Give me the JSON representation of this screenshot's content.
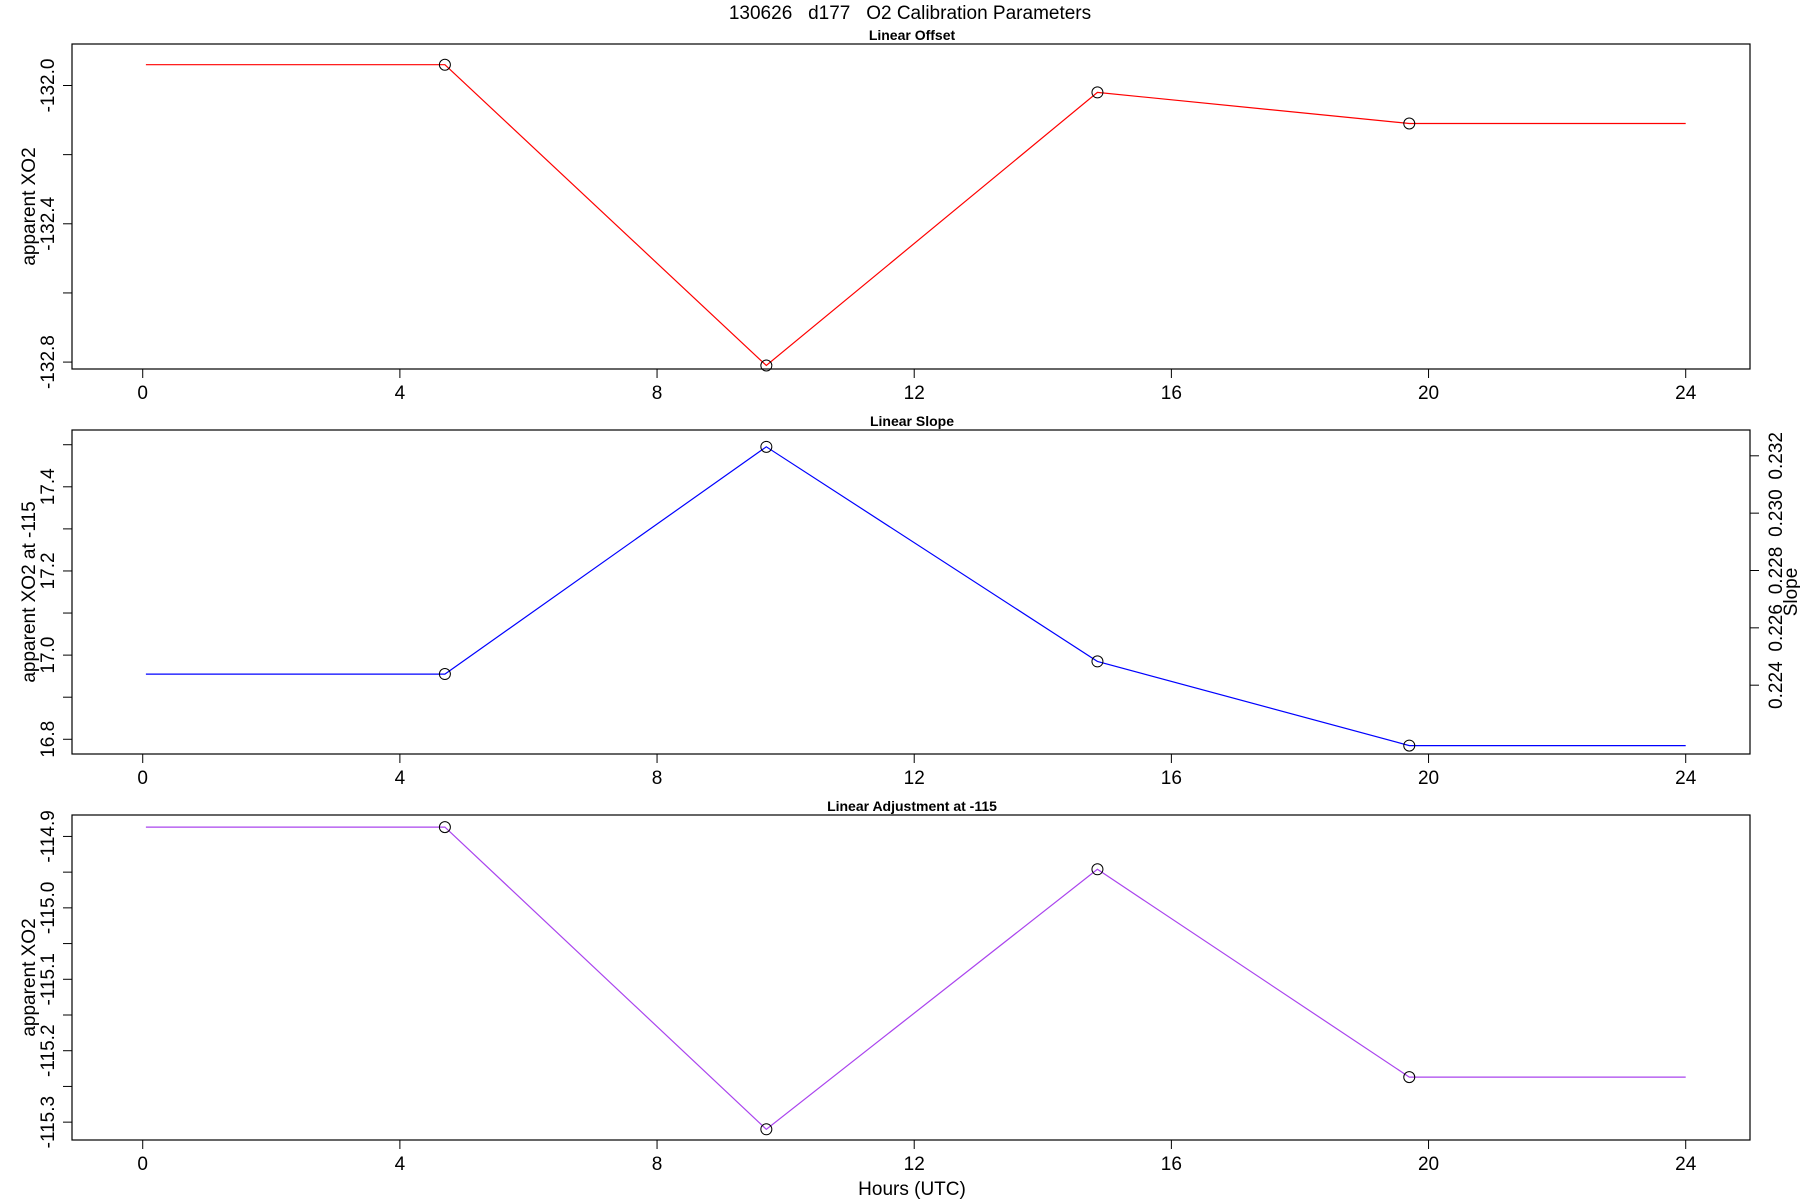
{
  "figure_title": "130626   d177   O2 Calibration Parameters",
  "chart_data": [
    {
      "type": "line",
      "title": "Linear Offset",
      "xlabel": "",
      "ylabel": "apparent XO2",
      "color": "#ff0000",
      "xlim": [
        -1.1,
        25.0
      ],
      "ylim": [
        -132.82,
        -131.88
      ],
      "xticks": [
        0,
        4,
        8,
        12,
        16,
        20,
        24
      ],
      "yticks": [
        -132.8,
        -132.4,
        -132.0
      ],
      "ytick_labels": [
        "-132.8",
        "-132.4",
        "-132.0"
      ],
      "x_extent": [
        0.05,
        24.0
      ],
      "points": [
        {
          "x": 4.7,
          "y": -131.94
        },
        {
          "x": 9.7,
          "y": -132.81
        },
        {
          "x": 14.85,
          "y": -132.02
        },
        {
          "x": 19.7,
          "y": -132.11
        }
      ]
    },
    {
      "type": "line",
      "title": "Linear Slope",
      "xlabel": "",
      "ylabel": "apparent XO2 at -115",
      "y2label": "Slope",
      "color": "#0000ff",
      "xlim": [
        -1.1,
        25.0
      ],
      "ylim": [
        16.765,
        17.535
      ],
      "xticks": [
        0,
        4,
        8,
        12,
        16,
        20,
        24
      ],
      "yticks": [
        16.8,
        17.0,
        17.2,
        17.4
      ],
      "ytick_labels": [
        "16.8",
        "17.0",
        "17.2",
        "17.4"
      ],
      "y2lim": [
        0.2216,
        0.2329
      ],
      "y2ticks": [
        0.224,
        0.226,
        0.228,
        0.23,
        0.232
      ],
      "y2tick_labels": [
        "0.224",
        "0.226",
        "0.228",
        "0.230",
        "0.232"
      ],
      "x_extent": [
        0.05,
        24.0
      ],
      "points": [
        {
          "x": 4.7,
          "y": 16.955
        },
        {
          "x": 9.7,
          "y": 17.495
        },
        {
          "x": 14.85,
          "y": 16.985
        },
        {
          "x": 19.7,
          "y": 16.785
        }
      ]
    },
    {
      "type": "line",
      "title": "Linear Adjustment at -115",
      "xlabel": "Hours (UTC)",
      "ylabel": "apparent XO2",
      "color": "#aa44ee",
      "xlim": [
        -1.1,
        25.0
      ],
      "ylim": [
        -115.325,
        -114.87
      ],
      "xticks": [
        0,
        4,
        8,
        12,
        16,
        20,
        24
      ],
      "yticks": [
        -115.3,
        -115.2,
        -115.1,
        -115.0,
        -114.9
      ],
      "ytick_labels": [
        "-115.3",
        "-115.2",
        "-115.1",
        "-115.0",
        "-114.9"
      ],
      "x_extent": [
        0.05,
        24.0
      ],
      "points": [
        {
          "x": 4.7,
          "y": -114.887
        },
        {
          "x": 9.7,
          "y": -115.31
        },
        {
          "x": 14.85,
          "y": -114.946
        },
        {
          "x": 19.7,
          "y": -115.237
        }
      ]
    }
  ]
}
